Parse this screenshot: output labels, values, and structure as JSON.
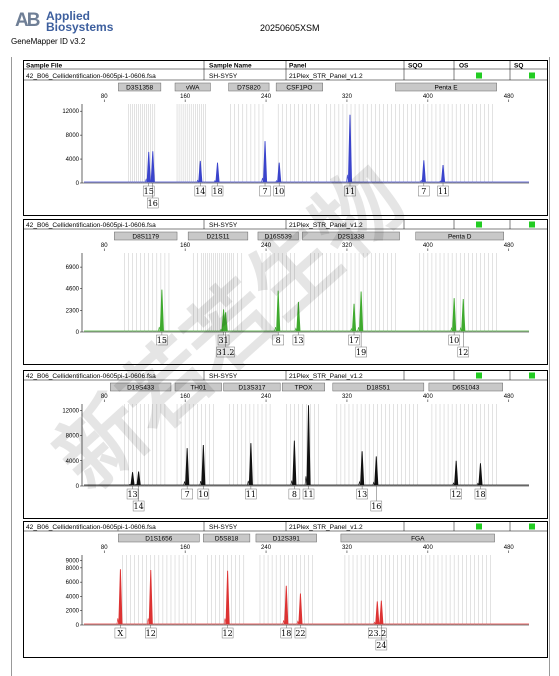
{
  "header": {
    "logo_mark": "AB",
    "logo_line1": "Applied",
    "logo_line2": "Biosystems",
    "run_id": "20250605XSM",
    "app_version": "GeneMapper ID v3.2"
  },
  "table_headers": {
    "sample_file": "Sample File",
    "sample_name": "Sample Name",
    "panel": "Panel",
    "sqo": "SQO",
    "os": "OS",
    "sq": "SQ"
  },
  "colors": {
    "blue": "#3b44cc",
    "green": "#3faa2e",
    "black": "#111111",
    "red": "#dd3333",
    "status": "#22cc22",
    "locus_bar": "#c8c8c8"
  },
  "watermark": "新若若生物",
  "panels": [
    {
      "id": "blue",
      "sample_file": "42_B06_Cellidentification-0605pi-1-0606.fsa",
      "sample_name": "SH-SY5Y",
      "panel": "21Plex_STR_Panel_v1.2",
      "show_headers": true,
      "color": "#3b44cc",
      "loci": [
        {
          "name": "D3S1358",
          "start": 94,
          "end": 136
        },
        {
          "name": "vWA",
          "start": 150,
          "end": 185
        },
        {
          "name": "D7S820",
          "start": 203,
          "end": 243
        },
        {
          "name": "CSF1PO",
          "start": 250,
          "end": 296
        },
        {
          "name": "Penta E",
          "start": 368,
          "end": 468
        }
      ],
      "x_ticks": [
        80,
        160,
        240,
        320,
        400,
        480
      ],
      "y_ticks": [
        0,
        4000,
        8000,
        12000
      ],
      "y_max": 13200,
      "bins": [
        104,
        106,
        108,
        110,
        112,
        114,
        116,
        118,
        120,
        122,
        124,
        126,
        128,
        130,
        152,
        154,
        156,
        158,
        160,
        162,
        164,
        166,
        168,
        170,
        172,
        174,
        176,
        178,
        180,
        205,
        209,
        213,
        217,
        221,
        225,
        229,
        233,
        237,
        252,
        256,
        260,
        264,
        268,
        272,
        276,
        280,
        284,
        288,
        292,
        300,
        304,
        308,
        312,
        316,
        320,
        324,
        328,
        332,
        336,
        340,
        344,
        348,
        352,
        356,
        360,
        364,
        368,
        372,
        376,
        380,
        384,
        388,
        392,
        396,
        400,
        404,
        408,
        412,
        416,
        420,
        424,
        428,
        432,
        436,
        440,
        444,
        448,
        452,
        456,
        460,
        464
      ],
      "peaks": [
        {
          "x": 124,
          "h": 5200
        },
        {
          "x": 128,
          "h": 5300
        },
        {
          "x": 175,
          "h": 3700
        },
        {
          "x": 192,
          "h": 3400
        },
        {
          "x": 239,
          "h": 7000
        },
        {
          "x": 253,
          "h": 3400
        },
        {
          "x": 323,
          "h": 11400
        },
        {
          "x": 396,
          "h": 3800
        },
        {
          "x": 415,
          "h": 3000
        }
      ],
      "alleles": [
        {
          "x": 124,
          "row": 0,
          "label": "15"
        },
        {
          "x": 128,
          "row": 1,
          "label": "16"
        },
        {
          "x": 175,
          "row": 0,
          "label": "14"
        },
        {
          "x": 192,
          "row": 0,
          "label": "18"
        },
        {
          "x": 239,
          "row": 0,
          "label": "7"
        },
        {
          "x": 253,
          "row": 0,
          "label": "10"
        },
        {
          "x": 323,
          "row": 0,
          "label": "11"
        },
        {
          "x": 396,
          "row": 0,
          "label": "7"
        },
        {
          "x": 415,
          "row": 0,
          "label": "11"
        }
      ]
    },
    {
      "id": "green",
      "sample_file": "42_B06_Cellidentification-0605pi-1-0606.fsa",
      "sample_name": "SH-SY5Y",
      "panel": "21Plex_STR_Panel_v1.2",
      "show_headers": false,
      "color": "#3faa2e",
      "loci": [
        {
          "name": "D8S1179",
          "start": 90,
          "end": 152
        },
        {
          "name": "D21S11",
          "start": 163,
          "end": 222
        },
        {
          "name": "D16S539",
          "start": 232,
          "end": 272
        },
        {
          "name": "D2S1338",
          "start": 276,
          "end": 372
        },
        {
          "name": "Penta D",
          "start": 388,
          "end": 475
        }
      ],
      "x_ticks": [
        80,
        160,
        240,
        320,
        400,
        480
      ],
      "y_ticks": [
        0,
        2300,
        4600,
        6900
      ],
      "y_max": 8400,
      "bins": [
        100,
        104,
        108,
        112,
        116,
        120,
        124,
        128,
        132,
        136,
        140,
        144,
        168,
        172,
        176,
        178,
        180,
        182,
        184,
        186,
        188,
        190,
        192,
        194,
        196,
        198,
        200,
        202,
        204,
        206,
        208,
        212,
        216,
        236,
        240,
        244,
        248,
        252,
        256,
        260,
        264,
        268,
        284,
        288,
        292,
        296,
        300,
        304,
        308,
        312,
        316,
        320,
        324,
        328,
        332,
        336,
        340,
        344,
        348,
        352,
        356,
        360,
        364,
        368,
        392,
        396,
        400,
        404,
        408,
        412,
        416,
        420,
        424,
        428,
        432,
        436,
        440,
        444,
        448,
        452,
        456,
        460,
        464,
        468
      ],
      "peaks": [
        {
          "x": 137,
          "h": 4500
        },
        {
          "x": 198,
          "h": 2400
        },
        {
          "x": 200,
          "h": 2100
        },
        {
          "x": 252,
          "h": 4400
        },
        {
          "x": 272,
          "h": 3200
        },
        {
          "x": 327,
          "h": 3000
        },
        {
          "x": 334,
          "h": 4300
        },
        {
          "x": 426,
          "h": 3600
        },
        {
          "x": 435,
          "h": 3500
        }
      ],
      "alleles": [
        {
          "x": 137,
          "row": 0,
          "label": "15"
        },
        {
          "x": 198,
          "row": 0,
          "label": "31"
        },
        {
          "x": 200,
          "row": 1,
          "label": "31.2"
        },
        {
          "x": 252,
          "row": 0,
          "label": "8"
        },
        {
          "x": 272,
          "row": 0,
          "label": "13"
        },
        {
          "x": 327,
          "row": 0,
          "label": "17"
        },
        {
          "x": 334,
          "row": 1,
          "label": "19"
        },
        {
          "x": 426,
          "row": 0,
          "label": "10"
        },
        {
          "x": 435,
          "row": 1,
          "label": "12"
        }
      ]
    },
    {
      "id": "black",
      "sample_file": "42_B06_Cellidentification-0605pi-1-0606.fsa",
      "sample_name": "SH-SY5Y",
      "panel": "21Plex_STR_Panel_v1.2",
      "show_headers": false,
      "color": "#111111",
      "loci": [
        {
          "name": "D19S433",
          "start": 86,
          "end": 146
        },
        {
          "name": "TH01",
          "start": 150,
          "end": 196
        },
        {
          "name": "D13S317",
          "start": 198,
          "end": 254
        },
        {
          "name": "TPOX",
          "start": 256,
          "end": 298
        },
        {
          "name": "D18S51",
          "start": 306,
          "end": 396
        },
        {
          "name": "D6S1043",
          "start": 401,
          "end": 474
        }
      ],
      "x_ticks": [
        80,
        160,
        240,
        320,
        400,
        480
      ],
      "y_ticks": [
        0,
        4000,
        8000,
        12000
      ],
      "y_max": 13000,
      "bins": [
        100,
        104,
        108,
        112,
        116,
        120,
        124,
        128,
        132,
        136,
        140,
        152,
        156,
        160,
        164,
        168,
        172,
        176,
        180,
        184,
        188,
        204,
        208,
        212,
        216,
        220,
        224,
        228,
        232,
        236,
        240,
        244,
        260,
        264,
        268,
        272,
        276,
        280,
        284,
        288,
        292,
        310,
        314,
        318,
        322,
        326,
        330,
        334,
        338,
        342,
        346,
        350,
        354,
        358,
        362,
        366,
        370,
        374,
        378,
        382,
        386,
        390,
        404,
        408,
        412,
        416,
        420,
        424,
        428,
        432,
        436,
        440,
        444,
        448,
        452,
        456,
        460,
        464,
        468
      ],
      "peaks": [
        {
          "x": 108,
          "h": 2200
        },
        {
          "x": 114,
          "h": 2300
        },
        {
          "x": 162,
          "h": 6000
        },
        {
          "x": 178,
          "h": 6500
        },
        {
          "x": 225,
          "h": 6800
        },
        {
          "x": 268,
          "h": 7200
        },
        {
          "x": 282,
          "h": 12800
        },
        {
          "x": 335,
          "h": 5500
        },
        {
          "x": 349,
          "h": 4700
        },
        {
          "x": 428,
          "h": 4000
        },
        {
          "x": 452,
          "h": 3600
        }
      ],
      "alleles": [
        {
          "x": 108,
          "row": 0,
          "label": "13"
        },
        {
          "x": 114,
          "row": 1,
          "label": "14"
        },
        {
          "x": 162,
          "row": 0,
          "label": "7"
        },
        {
          "x": 178,
          "row": 0,
          "label": "10"
        },
        {
          "x": 225,
          "row": 0,
          "label": "11"
        },
        {
          "x": 268,
          "row": 0,
          "label": "8"
        },
        {
          "x": 282,
          "row": 0,
          "label": "11"
        },
        {
          "x": 335,
          "row": 0,
          "label": "13"
        },
        {
          "x": 349,
          "row": 1,
          "label": "16"
        },
        {
          "x": 428,
          "row": 0,
          "label": "12"
        },
        {
          "x": 452,
          "row": 0,
          "label": "18"
        }
      ]
    },
    {
      "id": "red",
      "sample_file": "42_B06_Cellidentification-0605pi-1-0606.fsa",
      "sample_name": "SH-SY5Y",
      "panel": "21Plex_STR_Panel_v1.2",
      "show_headers": false,
      "color": "#dd3333",
      "loci": [
        {
          "name": "D1S1656",
          "start": 94,
          "end": 174
        },
        {
          "name": "D5S818",
          "start": 178,
          "end": 224
        },
        {
          "name": "D12S391",
          "start": 230,
          "end": 290
        },
        {
          "name": "FGA",
          "start": 314,
          "end": 466
        }
      ],
      "x_ticks": [
        80,
        160,
        240,
        320,
        400,
        480
      ],
      "y_ticks": [
        0,
        2000,
        4000,
        6000,
        8000,
        9000
      ],
      "y_max": 9800,
      "bins": [
        98,
        102,
        106,
        110,
        114,
        118,
        122,
        126,
        130,
        134,
        138,
        142,
        146,
        150,
        154,
        158,
        162,
        166,
        170,
        182,
        186,
        190,
        194,
        198,
        202,
        206,
        210,
        214,
        218,
        234,
        238,
        242,
        246,
        250,
        254,
        258,
        262,
        266,
        270,
        274,
        278,
        282,
        286,
        318,
        322,
        326,
        330,
        334,
        338,
        342,
        346,
        350,
        354,
        358,
        362,
        366,
        370,
        374,
        378,
        382,
        386,
        390,
        394,
        398,
        402,
        406,
        410,
        414,
        418,
        422,
        426,
        430,
        434,
        438,
        442,
        446,
        450,
        454,
        458,
        462
      ],
      "peaks": [
        {
          "x": 96,
          "h": 7800
        },
        {
          "x": 126,
          "h": 7700
        },
        {
          "x": 202,
          "h": 7600
        },
        {
          "x": 260,
          "h": 5500
        },
        {
          "x": 274,
          "h": 4400
        },
        {
          "x": 350,
          "h": 3300
        },
        {
          "x": 354,
          "h": 3400
        }
      ],
      "alleles": [
        {
          "x": 96,
          "row": 0,
          "label": "X"
        },
        {
          "x": 126,
          "row": 0,
          "label": "12"
        },
        {
          "x": 202,
          "row": 0,
          "label": "12"
        },
        {
          "x": 260,
          "row": 0,
          "label": "18"
        },
        {
          "x": 274,
          "row": 0,
          "label": "22"
        },
        {
          "x": 350,
          "row": 0,
          "label": "23.2"
        },
        {
          "x": 354,
          "row": 1,
          "label": "24"
        }
      ]
    }
  ]
}
